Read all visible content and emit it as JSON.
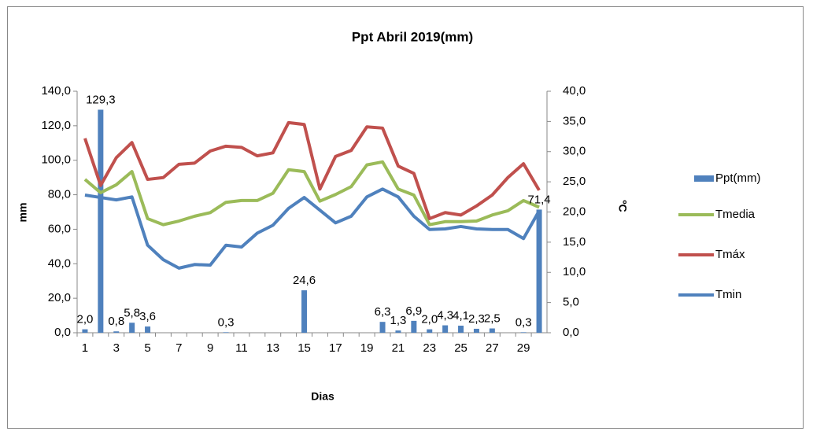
{
  "chart_data": {
    "type": "combo",
    "title": "Ppt Abril 2019(mm)",
    "x_label": "Dias",
    "y_label": "mm",
    "y2_label": "ºC",
    "categories": [
      "1",
      null,
      "3",
      null,
      "5",
      null,
      "7",
      null,
      "9",
      null,
      "11",
      null,
      "13",
      null,
      "15",
      null,
      "17",
      null,
      "19",
      null,
      "21",
      null,
      "23",
      null,
      "25",
      null,
      "27",
      null,
      "29",
      null
    ],
    "ylim": [
      0,
      140
    ],
    "yticks": [
      {
        "value": 0,
        "label": "0,0"
      },
      {
        "value": 20,
        "label": "20,0"
      },
      {
        "value": 40,
        "label": "40,0"
      },
      {
        "value": 60,
        "label": "60,0"
      },
      {
        "value": 80,
        "label": "80,0"
      },
      {
        "value": 100,
        "label": "100,0"
      },
      {
        "value": 120,
        "label": "120,0"
      },
      {
        "value": 140,
        "label": "140,0"
      }
    ],
    "y2lim": [
      0,
      40
    ],
    "y2ticks": [
      {
        "value": 0,
        "label": "0,0"
      },
      {
        "value": 5,
        "label": "5,0"
      },
      {
        "value": 10,
        "label": "10,0"
      },
      {
        "value": 15,
        "label": "15,0"
      },
      {
        "value": 20,
        "label": "20,0"
      },
      {
        "value": 25,
        "label": "25,0"
      },
      {
        "value": 30,
        "label": "30,0"
      },
      {
        "value": 35,
        "label": "35,0"
      },
      {
        "value": 40,
        "label": "40,0"
      }
    ],
    "legend": "right",
    "series": [
      {
        "name": "Ppt(mm)",
        "type": "bar",
        "color": "#4f81bd",
        "values": [
          2.0,
          129.3,
          0.8,
          5.8,
          3.6,
          null,
          null,
          null,
          null,
          0.3,
          null,
          null,
          null,
          null,
          24.6,
          null,
          null,
          null,
          null,
          6.3,
          1.3,
          6.9,
          2.0,
          4.3,
          4.1,
          2.3,
          2.5,
          null,
          0.3,
          71.4
        ],
        "value_labels": [
          "2,0",
          "129,3",
          "0,8",
          "5,8",
          "3,6",
          null,
          null,
          null,
          null,
          "0,3",
          null,
          null,
          null,
          null,
          "24,6",
          null,
          null,
          null,
          null,
          "6,3",
          "1,3",
          "6,9",
          "2,0",
          "4,3",
          "4,1",
          "2,3",
          "2,5",
          null,
          "0,3",
          "71,4"
        ]
      },
      {
        "name": "Tmedia",
        "type": "line",
        "axis": "y2",
        "color": "#9bbb59",
        "values": [
          25.4,
          23.2,
          24.5,
          26.7,
          18.9,
          17.9,
          18.5,
          19.3,
          19.9,
          21.6,
          21.9,
          21.9,
          23.1,
          27.0,
          26.7,
          21.8,
          22.9,
          24.2,
          27.8,
          28.3,
          23.8,
          22.8,
          17.9,
          18.4,
          18.4,
          18.5,
          19.5,
          20.2,
          21.9,
          20.8
        ]
      },
      {
        "name": "Tmáx",
        "type": "line",
        "axis": "y2",
        "color": "#c0504d",
        "values": [
          32.2,
          24.4,
          29.0,
          31.5,
          25.4,
          25.7,
          27.9,
          28.1,
          30.1,
          30.9,
          30.7,
          29.3,
          29.8,
          34.8,
          34.5,
          23.8,
          29.2,
          30.2,
          34.1,
          33.9,
          27.6,
          26.4,
          18.9,
          19.9,
          19.5,
          21.0,
          22.8,
          25.7,
          28.0,
          23.6
        ]
      },
      {
        "name": "Tmin",
        "type": "line",
        "axis": "y2",
        "color": "#4f81bd",
        "values": [
          22.8,
          22.4,
          22.0,
          22.5,
          14.5,
          12.1,
          10.7,
          11.3,
          11.2,
          14.5,
          14.2,
          16.5,
          17.8,
          20.6,
          22.4,
          20.3,
          18.2,
          19.3,
          22.5,
          23.8,
          22.5,
          19.3,
          17.1,
          17.2,
          17.6,
          17.2,
          17.1,
          17.1,
          15.6,
          20.2
        ]
      }
    ]
  }
}
